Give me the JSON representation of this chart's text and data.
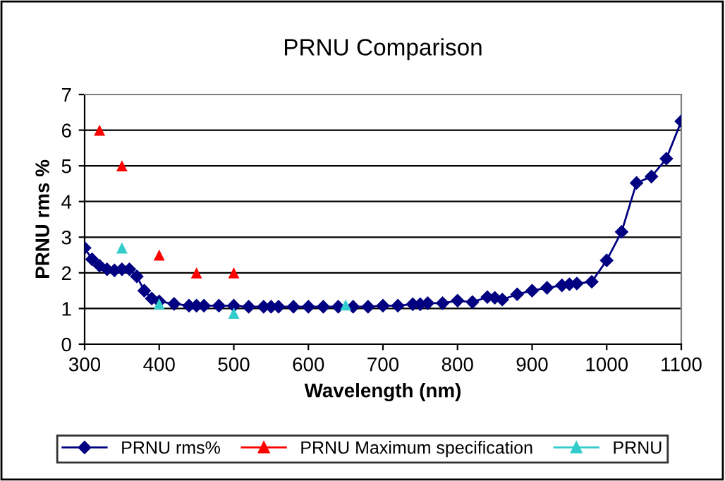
{
  "chart_data": {
    "type": "line",
    "title": "PRNU Comparison",
    "xlabel": "Wavelength (nm)",
    "ylabel": "PRNU rms %",
    "xlim": [
      300,
      1100
    ],
    "xticks": [
      300,
      400,
      500,
      600,
      700,
      800,
      900,
      1000,
      1100
    ],
    "ylim": [
      0,
      7
    ],
    "yticks": [
      0,
      1,
      2,
      3,
      4,
      5,
      6,
      7
    ],
    "grid": "y",
    "legend": "bottom",
    "series": [
      {
        "name": "PRNU rms%",
        "color": "#000080",
        "marker": "diamond",
        "x": [
          300,
          310,
          320,
          330,
          340,
          350,
          360,
          370,
          380,
          390,
          400,
          420,
          440,
          450,
          460,
          480,
          500,
          520,
          540,
          550,
          560,
          580,
          600,
          620,
          640,
          660,
          680,
          700,
          720,
          740,
          750,
          760,
          780,
          800,
          820,
          840,
          850,
          860,
          880,
          900,
          920,
          940,
          950,
          960,
          980,
          1000,
          1020,
          1040,
          1060,
          1080,
          1100
        ],
        "values": [
          2.7,
          2.38,
          2.2,
          2.1,
          2.07,
          2.1,
          2.1,
          1.9,
          1.5,
          1.28,
          1.2,
          1.13,
          1.08,
          1.08,
          1.08,
          1.08,
          1.08,
          1.05,
          1.05,
          1.05,
          1.05,
          1.05,
          1.05,
          1.05,
          1.05,
          1.05,
          1.05,
          1.08,
          1.08,
          1.12,
          1.12,
          1.15,
          1.15,
          1.22,
          1.18,
          1.32,
          1.3,
          1.25,
          1.4,
          1.5,
          1.58,
          1.65,
          1.68,
          1.7,
          1.75,
          2.35,
          3.15,
          4.52,
          4.7,
          5.2,
          6.25
        ]
      },
      {
        "name": "PRNU Maximum specification",
        "type": "scatter",
        "color": "#ff0000",
        "marker": "triangle",
        "x": [
          320,
          350,
          400,
          450,
          500
        ],
        "values": [
          6,
          5,
          2.5,
          2,
          2
        ]
      },
      {
        "name": "PRNU",
        "type": "scatter",
        "color": "#33cccc",
        "marker": "triangle",
        "x": [
          350,
          400,
          500,
          650
        ],
        "values": [
          2.7,
          1.13,
          0.87,
          1.1
        ]
      }
    ]
  }
}
